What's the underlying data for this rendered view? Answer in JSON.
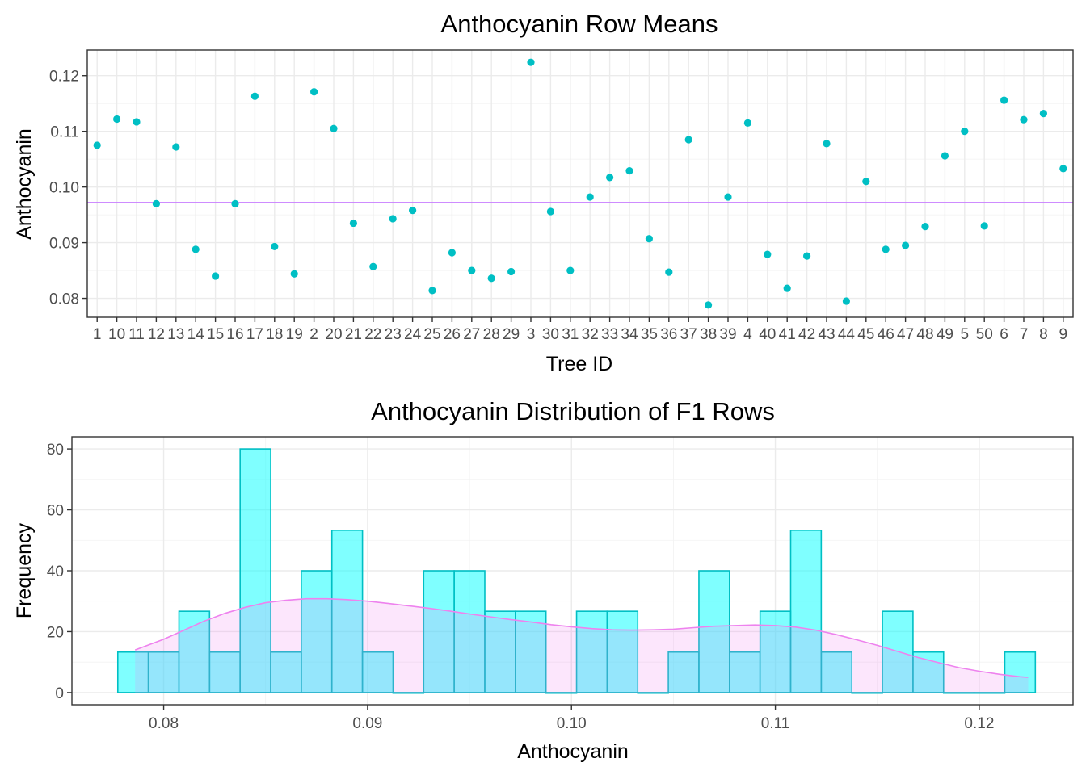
{
  "colors": {
    "point": "#00BFC4",
    "mean_line": "#C77CFF",
    "hist_fill": "#00FFFF",
    "hist_stroke": "#00BFC4",
    "density_fill": "#EE82EE",
    "density_line": "#EE82EE"
  },
  "chart_data": [
    {
      "type": "scatter",
      "title": "Anthocyanin Row Means",
      "xlabel": "Tree ID",
      "ylabel": "Anthocyanin",
      "categories": [
        "1",
        "10",
        "11",
        "12",
        "13",
        "14",
        "15",
        "16",
        "17",
        "18",
        "19",
        "2",
        "20",
        "21",
        "22",
        "23",
        "24",
        "25",
        "26",
        "27",
        "28",
        "29",
        "3",
        "30",
        "31",
        "32",
        "33",
        "34",
        "35",
        "36",
        "37",
        "38",
        "39",
        "4",
        "40",
        "41",
        "42",
        "43",
        "44",
        "45",
        "46",
        "47",
        "48",
        "49",
        "5",
        "50",
        "6",
        "7",
        "8",
        "9"
      ],
      "values": [
        0.1075,
        0.1122,
        0.1117,
        0.097,
        0.1072,
        0.0888,
        0.084,
        0.097,
        0.1163,
        0.0893,
        0.0844,
        0.1171,
        0.1105,
        0.0935,
        0.0857,
        0.0943,
        0.0958,
        0.0814,
        0.0882,
        0.085,
        0.0836,
        0.0848,
        0.1224,
        0.0956,
        0.085,
        0.0982,
        0.1017,
        0.1029,
        0.0907,
        0.0847,
        0.1085,
        0.0788,
        0.0982,
        0.1115,
        0.0879,
        0.0818,
        0.0876,
        0.1078,
        0.0795,
        0.101,
        0.0888,
        0.0895,
        0.0929,
        0.1056,
        0.11,
        0.093,
        0.1156,
        0.1121,
        0.1132,
        0.1033
      ],
      "mean_line": 0.0972,
      "ylim": [
        0.0766,
        0.1246
      ],
      "yticks": [
        0.08,
        0.09,
        0.1,
        0.11,
        0.12
      ],
      "ytick_labels": [
        "0.08",
        "0.09",
        "0.10",
        "0.11",
        "0.12"
      ],
      "grid": true
    },
    {
      "type": "bar",
      "title": "Anthocyanin Distribution of F1 Rows",
      "xlabel": "Anthocyanin",
      "ylabel": "Frequency",
      "bin_start": 0.07775,
      "bin_width": 0.0015,
      "values": [
        13.3,
        13.3,
        26.7,
        13.3,
        80,
        13.3,
        40,
        53.3,
        13.3,
        0,
        40,
        40,
        26.7,
        26.7,
        0,
        26.7,
        26.7,
        0,
        13.3,
        40,
        13.3,
        26.7,
        53.3,
        13.3,
        0,
        26.7,
        13.3,
        0,
        0,
        13.3
      ],
      "density": {
        "x": [
          0.0786,
          0.08,
          0.081,
          0.082,
          0.083,
          0.084,
          0.085,
          0.086,
          0.087,
          0.088,
          0.089,
          0.09,
          0.091,
          0.092,
          0.093,
          0.094,
          0.095,
          0.096,
          0.097,
          0.098,
          0.099,
          0.1,
          0.101,
          0.102,
          0.103,
          0.104,
          0.105,
          0.106,
          0.107,
          0.108,
          0.109,
          0.11,
          0.111,
          0.112,
          0.113,
          0.114,
          0.115,
          0.116,
          0.117,
          0.118,
          0.119,
          0.12,
          0.121,
          0.122,
          0.1224
        ],
        "y": [
          14,
          17.5,
          20.5,
          23.5,
          26,
          28,
          29.5,
          30.3,
          30.8,
          30.8,
          30.5,
          30,
          29.3,
          28.5,
          27.7,
          26.8,
          25.8,
          24.9,
          24,
          23.2,
          22.3,
          21.6,
          21,
          20.6,
          20.5,
          20.6,
          20.8,
          21.3,
          21.8,
          22,
          22.2,
          22,
          21.5,
          20.5,
          19,
          17.3,
          15.5,
          13.5,
          11.5,
          9.8,
          8.2,
          7,
          6,
          5.2,
          5
        ]
      },
      "xlim": [
        0.0755,
        0.1246
      ],
      "ylim": [
        -4,
        84
      ],
      "xticks": [
        0.08,
        0.09,
        0.1,
        0.11,
        0.12
      ],
      "xtick_labels": [
        "0.08",
        "0.09",
        "0.10",
        "0.11",
        "0.12"
      ],
      "yticks": [
        0,
        20,
        40,
        60,
        80
      ],
      "ytick_labels": [
        "0",
        "20",
        "40",
        "60",
        "80"
      ],
      "grid": true
    }
  ]
}
